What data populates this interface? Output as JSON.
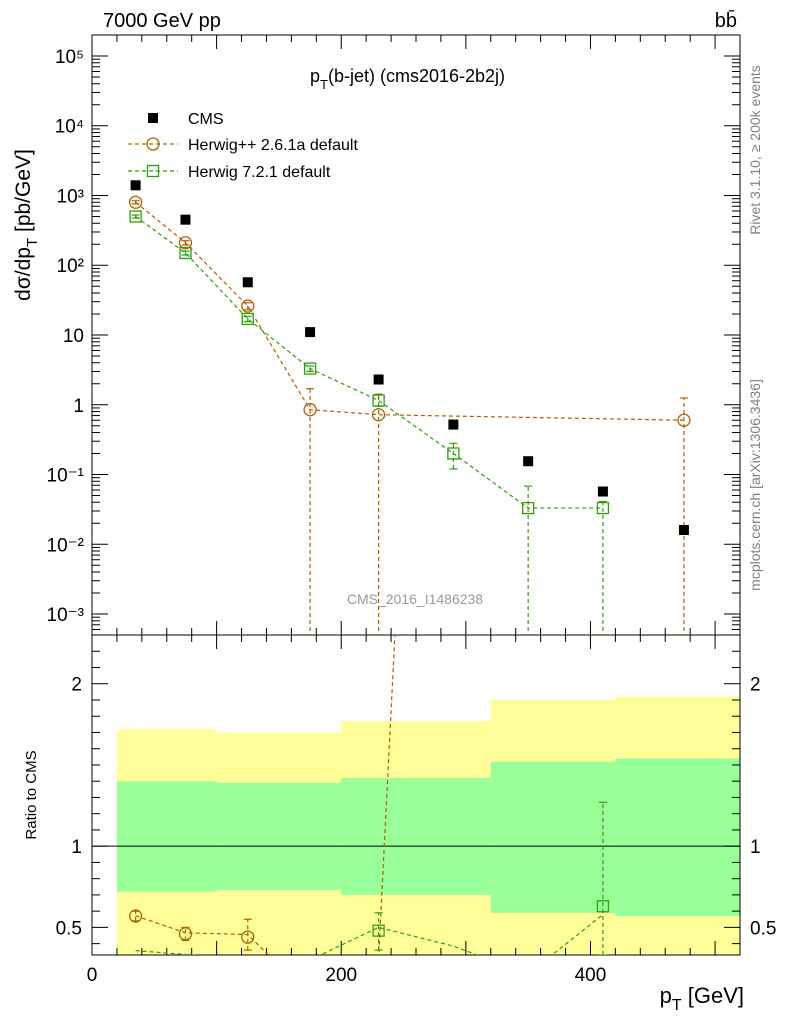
{
  "header": {
    "left": "7000 GeV pp",
    "right": "bb̄"
  },
  "side_labels": {
    "rivet": "Rivet 3.1.10, ≥ 200k events",
    "mcplots": "mcplots.cern.ch [arXiv:1306.3436]"
  },
  "chart_data": [
    {
      "type": "scatter",
      "panel": "main",
      "title": "p_T(b-jet) (cms2016-2b2j)",
      "title_main": "p",
      "title_sub": "T",
      "title_rest": "(b-jet) (cms2016-2b2j)",
      "ylabel": "dσ/dp_T [pb/GeV]",
      "ylabel_main": "dσ/dp",
      "ylabel_sub": "T",
      "ylabel_rest": " [pb/GeV]",
      "yscale": "log",
      "ylim": [
        0.0005,
        200000
      ],
      "xlim": [
        0,
        520
      ],
      "ytick_labels": [
        "10⁻³",
        "10⁻²",
        "10⁻¹",
        "1",
        "10",
        "10²",
        "10³",
        "10⁴",
        "10⁵"
      ],
      "watermark": "CMS_2016_I1486238",
      "legend_position": "top-left",
      "series": [
        {
          "name": "CMS",
          "marker": "filled-square",
          "color": "#000000",
          "x": [
            35,
            75,
            125,
            175,
            230,
            290,
            350,
            410,
            475
          ],
          "y": [
            1400,
            450,
            57,
            11,
            2.3,
            0.52,
            0.155,
            0.057,
            0.016
          ]
        },
        {
          "name": "Herwig++ 2.6.1a default",
          "marker": "open-circle",
          "color": "#b35f00",
          "x": [
            35,
            75,
            125,
            175,
            230,
            475
          ],
          "y": [
            800,
            210,
            26,
            0.85,
            0.72,
            0.6
          ],
          "err_low": [
            40,
            15,
            3,
            0.85,
            0.72,
            0.6
          ],
          "err_high": [
            40,
            15,
            3,
            0.85,
            0.7,
            0.65
          ]
        },
        {
          "name": "Herwig 7.2.1 default",
          "marker": "open-square",
          "color": "#2ca00a",
          "x": [
            35,
            75,
            125,
            175,
            230,
            290,
            350,
            410
          ],
          "y": [
            500,
            150,
            17,
            3.3,
            1.15,
            0.2,
            0.033,
            0.033
          ],
          "err_low": [
            25,
            10,
            1.5,
            0.3,
            0.2,
            0.08,
            0.033,
            0.033
          ],
          "err_high": [
            25,
            10,
            1.5,
            0.3,
            0.25,
            0.08,
            0.035,
            0.008
          ]
        }
      ]
    },
    {
      "type": "scatter",
      "panel": "ratio",
      "ylabel": "Ratio to CMS",
      "xlabel": "p_T [GeV]",
      "xlabel_main": "p",
      "xlabel_sub": "T",
      "xlabel_rest": " [GeV]",
      "xlim": [
        0,
        520
      ],
      "ylim": [
        0.33,
        2.3
      ],
      "xtick_labels": [
        "0",
        "200",
        "400"
      ],
      "ytick_labels": [
        "0.5",
        "1",
        "2"
      ],
      "bands": {
        "edges": [
          20,
          100,
          200,
          320,
          420,
          520
        ],
        "green_low": [
          0.72,
          0.73,
          0.7,
          0.59,
          0.57,
          0.56
        ],
        "green_high": [
          1.4,
          1.39,
          1.42,
          1.52,
          1.54,
          1.55
        ],
        "yellow_low": [
          0.33,
          0.33,
          0.33,
          0.33,
          0.33,
          0.33
        ],
        "yellow_high": [
          1.72,
          1.7,
          1.77,
          1.9,
          1.92,
          1.94
        ]
      },
      "series": [
        {
          "name": "Herwig++ 2.6.1a default",
          "color": "#b35f00",
          "x": [
            35,
            75,
            125
          ],
          "y": [
            0.57,
            0.46,
            0.44
          ],
          "err_low": [
            0.03,
            0.04,
            0.08
          ],
          "err_high": [
            0.03,
            0.04,
            0.11
          ]
        },
        {
          "name": "Herwig 7.2.1 default",
          "color": "#2ca00a",
          "x": [
            230,
            410
          ],
          "y": [
            0.48,
            0.63
          ],
          "err_low": [
            0.12,
            0.3
          ],
          "err_high": [
            0.11,
            0.64
          ]
        }
      ]
    }
  ]
}
